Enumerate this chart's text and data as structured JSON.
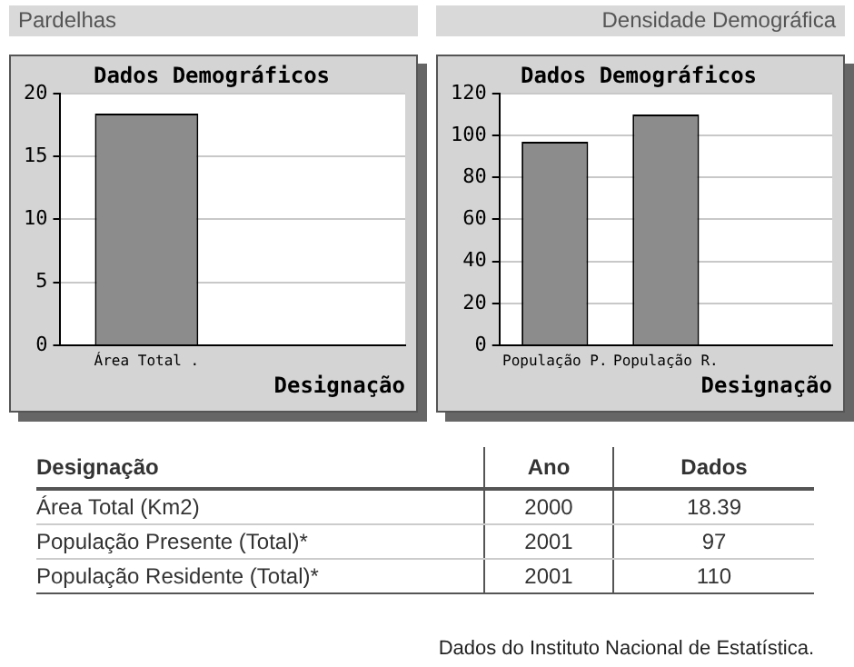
{
  "chart_data": [
    {
      "type": "bar",
      "title": "Dados Demográficos",
      "xlabel": "Designação",
      "annotations": [
        "Pardelhas"
      ],
      "categories": [
        "Área Total .",
        null
      ],
      "values": [
        18.4,
        null
      ],
      "color": "#8c8c8c",
      "ylim": [
        0,
        20
      ],
      "yticks": [
        0,
        5,
        10,
        15,
        20
      ],
      "grid": "y",
      "legend": false
    },
    {
      "type": "bar",
      "title": "Dados Demográficos",
      "xlabel": "Designação",
      "annotations": [
        "Densidade Demográfica"
      ],
      "categories": [
        "População P.",
        "População R.",
        null
      ],
      "values": [
        97,
        110,
        null
      ],
      "color": "#8c8c8c",
      "ylim": [
        0,
        120
      ],
      "yticks": [
        0,
        20,
        40,
        60,
        80,
        100,
        120
      ],
      "grid": "y",
      "legend": false
    },
    {
      "type": "other",
      "categories": [
        "Área Total (Km2)",
        "População Presente (Total)*",
        "População Residente (Total)*"
      ],
      "annotations": [
        "Designação",
        "Ano",
        "Dados",
        "2000",
        "2001",
        "2001",
        "18.39",
        "97",
        "110",
        "Dados do Instituto Nacional de Estatística."
      ]
    }
  ]
}
